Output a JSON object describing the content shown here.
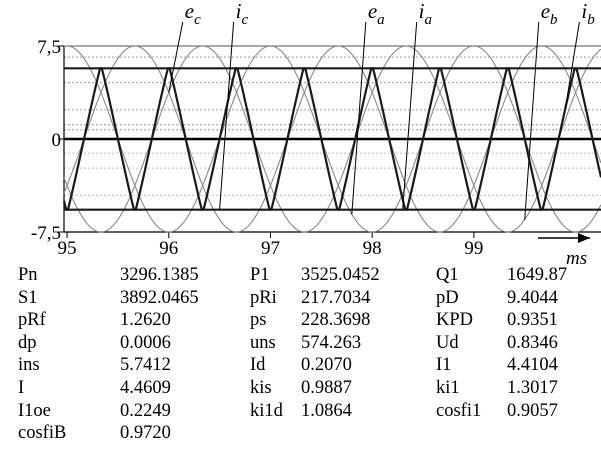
{
  "chart_data": {
    "type": "line",
    "title": "",
    "x_unit_label": "ms",
    "x_ticks": [
      95,
      96,
      97,
      98,
      99
    ],
    "xlim": [
      94.97,
      100.25
    ],
    "y_ticks": [
      {
        "value": 7.5,
        "label": "7,5"
      },
      {
        "value": 0,
        "label": "0"
      },
      {
        "value": -7.5,
        "label": "-7,5"
      }
    ],
    "ylim": [
      -7.5,
      7.5
    ],
    "waveform_period_ms": 2.0,
    "series": [
      {
        "name": "e",
        "sub": "a",
        "kind": "sine",
        "amplitude": 7.5,
        "phase_deg": 270,
        "color": "#8a8a8a"
      },
      {
        "name": "e",
        "sub": "b",
        "kind": "sine",
        "amplitude": 7.5,
        "phase_deg": 30,
        "color": "#8a8a8a"
      },
      {
        "name": "e",
        "sub": "c",
        "kind": "sine",
        "amplitude": 7.5,
        "phase_deg": 150,
        "color": "#8a8a8a"
      },
      {
        "name": "i",
        "sub": "a",
        "kind": "trapezoid",
        "amplitude": 5.7,
        "phase_deg": 270,
        "color": "#1a1a1a"
      },
      {
        "name": "i",
        "sub": "b",
        "kind": "trapezoid",
        "amplitude": 5.7,
        "phase_deg": 30,
        "color": "#1a1a1a"
      },
      {
        "name": "i",
        "sub": "c",
        "kind": "trapezoid",
        "amplitude": 5.7,
        "phase_deg": 150,
        "color": "#1a1a1a"
      }
    ],
    "annotations": [
      {
        "name": "e",
        "sub": "c",
        "at_x": 96.0
      },
      {
        "name": "i",
        "sub": "c",
        "at_x": 96.5
      },
      {
        "name": "e",
        "sub": "a",
        "at_x": 97.8
      },
      {
        "name": "i",
        "sub": "a",
        "at_x": 98.3
      },
      {
        "name": "e",
        "sub": "b",
        "at_x": 99.5
      },
      {
        "name": "i",
        "sub": "b",
        "at_x": 99.9
      }
    ]
  },
  "parameters": [
    [
      {
        "name": "Pn",
        "value": "3296.1385"
      },
      {
        "name": "P1",
        "value": "3525.0452"
      },
      {
        "name": "Q1",
        "value": "1649.87"
      }
    ],
    [
      {
        "name": "S1",
        "value": "3892.0465"
      },
      {
        "name": "pRi",
        "value": "217.7034"
      },
      {
        "name": "pD",
        "value": "9.4044"
      }
    ],
    [
      {
        "name": "pRf",
        "value": "1.2620"
      },
      {
        "name": "ps",
        "value": "228.3698"
      },
      {
        "name": "KPD",
        "value": "0.9351"
      }
    ],
    [
      {
        "name": "dp",
        "value": "0.0006"
      },
      {
        "name": "uns",
        "value": "574.263"
      },
      {
        "name": "Ud",
        "value": "0.8346"
      }
    ],
    [
      {
        "name": "ins",
        "value": "5.7412"
      },
      {
        "name": "Id",
        "value": "0.2070"
      },
      {
        "name": "I1",
        "value": "4.4104"
      }
    ],
    [
      {
        "name": "I",
        "value": "4.4609"
      },
      {
        "name": "kis",
        "value": "0.9887"
      },
      {
        "name": "ki1",
        "value": "1.3017"
      }
    ],
    [
      {
        "name": "I1oe",
        "value": "0.2249"
      },
      {
        "name": "ki1d",
        "value": "1.0864"
      },
      {
        "name": "cosfi1",
        "value": "0.9057"
      }
    ],
    [
      {
        "name": "cosfiB",
        "value": "0.9720"
      }
    ]
  ]
}
